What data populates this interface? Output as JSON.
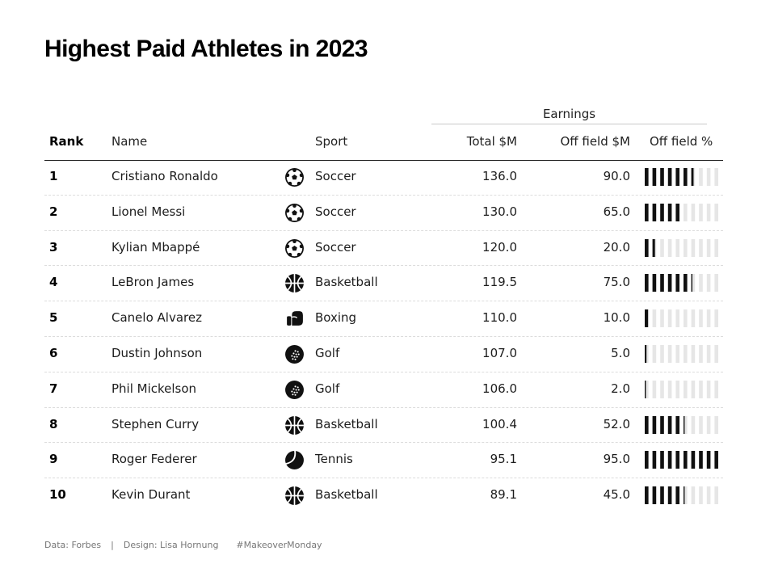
{
  "title": "Highest Paid Athletes in 2023",
  "chart_data": {
    "type": "table",
    "group_header": "Earnings",
    "columns": [
      "Rank",
      "Name",
      "Sport",
      "Total $M",
      "Off field $M",
      "Off field %"
    ],
    "rows": [
      {
        "rank": "1",
        "name": "Cristiano Ronaldo",
        "sport": "Soccer",
        "sport_icon": "soccer-ball-icon",
        "total": "136.0",
        "off_field": "90.0",
        "off_field_pct": 66.2
      },
      {
        "rank": "2",
        "name": "Lionel Messi",
        "sport": "Soccer",
        "sport_icon": "soccer-ball-icon",
        "total": "130.0",
        "off_field": "65.0",
        "off_field_pct": 50.0
      },
      {
        "rank": "3",
        "name": "Kylian Mbappé",
        "sport": "Soccer",
        "sport_icon": "soccer-ball-icon",
        "total": "120.0",
        "off_field": "20.0",
        "off_field_pct": 16.7
      },
      {
        "rank": "4",
        "name": "LeBron James",
        "sport": "Basketball",
        "sport_icon": "basketball-icon",
        "total": "119.5",
        "off_field": "75.0",
        "off_field_pct": 62.8
      },
      {
        "rank": "5",
        "name": "Canelo Alvarez",
        "sport": "Boxing",
        "sport_icon": "boxing-glove-icon",
        "total": "110.0",
        "off_field": "10.0",
        "off_field_pct": 9.1
      },
      {
        "rank": "6",
        "name": "Dustin Johnson",
        "sport": "Golf",
        "sport_icon": "golf-ball-icon",
        "total": "107.0",
        "off_field": "5.0",
        "off_field_pct": 4.7
      },
      {
        "rank": "7",
        "name": "Phil Mickelson",
        "sport": "Golf",
        "sport_icon": "golf-ball-icon",
        "total": "106.0",
        "off_field": "2.0",
        "off_field_pct": 1.9
      },
      {
        "rank": "8",
        "name": "Stephen Curry",
        "sport": "Basketball",
        "sport_icon": "basketball-icon",
        "total": "100.4",
        "off_field": "52.0",
        "off_field_pct": 51.8
      },
      {
        "rank": "9",
        "name": "Roger Federer",
        "sport": "Tennis",
        "sport_icon": "tennis-ball-icon",
        "total": "95.1",
        "off_field": "95.0",
        "off_field_pct": 99.9
      },
      {
        "rank": "10",
        "name": "Kevin Durant",
        "sport": "Basketball",
        "sport_icon": "basketball-icon",
        "total": "89.1",
        "off_field": "45.0",
        "off_field_pct": 50.5
      }
    ],
    "bar_segments": 10,
    "colors": {
      "filled": "#111111",
      "empty": "#e6e6e6"
    }
  },
  "footer": {
    "source": "Data: Forbes",
    "separator": "|",
    "design": "Design: Lisa Hornung",
    "hashtag": "#MakeoverMonday"
  }
}
